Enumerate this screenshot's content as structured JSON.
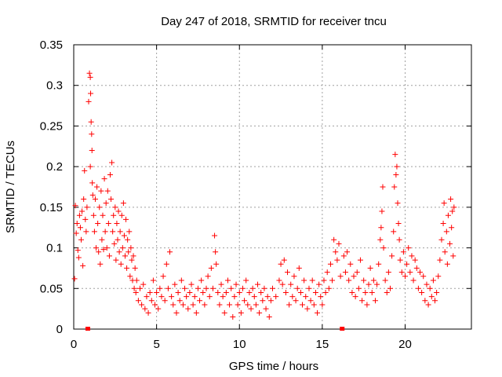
{
  "chart_data": {
    "type": "scatter",
    "title": "Day 247 of 2018, SRMTID for receiver tncu",
    "xlabel": "GPS time / hours",
    "ylabel": "SRMTID / TECUs",
    "xlim": [
      0,
      24
    ],
    "ylim": [
      0,
      0.35
    ],
    "xticks": [
      0,
      5,
      10,
      15,
      20
    ],
    "yticks": [
      0,
      0.05,
      0.1,
      0.15,
      0.2,
      0.25,
      0.3,
      0.35
    ],
    "xtick_labels": [
      "0",
      "5",
      "10",
      "15",
      "20"
    ],
    "ytick_labels": [
      "0",
      "0.05",
      "0.1",
      "0.15",
      "0.2",
      "0.25",
      "0.3",
      "0.35"
    ],
    "grid": true,
    "marker": "+",
    "series_color": "#ff0000",
    "gap_markers_x": [
      0.85,
      16.2
    ],
    "series": [
      {
        "name": "SRMTID",
        "points": [
          [
            0.05,
            0.062
          ],
          [
            0.1,
            0.152
          ],
          [
            0.15,
            0.118
          ],
          [
            0.2,
            0.13
          ],
          [
            0.25,
            0.097
          ],
          [
            0.3,
            0.088
          ],
          [
            0.35,
            0.14
          ],
          [
            0.4,
            0.125
          ],
          [
            0.45,
            0.11
          ],
          [
            0.5,
            0.145
          ],
          [
            0.55,
            0.078
          ],
          [
            0.6,
            0.16
          ],
          [
            0.65,
            0.195
          ],
          [
            0.7,
            0.135
          ],
          [
            0.75,
            0.12
          ],
          [
            0.8,
            0.15
          ],
          [
            0.9,
            0.28
          ],
          [
            0.95,
            0.315
          ],
          [
            1.0,
            0.31
          ],
          [
            1.02,
            0.29
          ],
          [
            1.05,
            0.255
          ],
          [
            1.08,
            0.24
          ],
          [
            1.1,
            0.22
          ],
          [
            1.0,
            0.2
          ],
          [
            1.12,
            0.18
          ],
          [
            1.15,
            0.165
          ],
          [
            1.2,
            0.14
          ],
          [
            1.25,
            0.12
          ],
          [
            1.3,
            0.16
          ],
          [
            1.35,
            0.1
          ],
          [
            1.4,
            0.175
          ],
          [
            1.45,
            0.13
          ],
          [
            1.5,
            0.095
          ],
          [
            1.55,
            0.15
          ],
          [
            1.6,
            0.08
          ],
          [
            1.65,
            0.17
          ],
          [
            1.7,
            0.11
          ],
          [
            1.75,
            0.14
          ],
          [
            1.8,
            0.098
          ],
          [
            1.85,
            0.185
          ],
          [
            1.9,
            0.12
          ],
          [
            1.95,
            0.155
          ],
          [
            2.0,
            0.1
          ],
          [
            2.05,
            0.17
          ],
          [
            2.1,
            0.13
          ],
          [
            2.15,
            0.09
          ],
          [
            2.2,
            0.19
          ],
          [
            2.25,
            0.16
          ],
          [
            2.3,
            0.205
          ],
          [
            2.35,
            0.12
          ],
          [
            2.4,
            0.14
          ],
          [
            2.45,
            0.105
          ],
          [
            2.5,
            0.15
          ],
          [
            2.55,
            0.085
          ],
          [
            2.6,
            0.13
          ],
          [
            2.65,
            0.11
          ],
          [
            2.7,
            0.145
          ],
          [
            2.75,
            0.095
          ],
          [
            2.8,
            0.12
          ],
          [
            2.85,
            0.08
          ],
          [
            2.9,
            0.14
          ],
          [
            2.95,
            0.1
          ],
          [
            3.0,
            0.155
          ],
          [
            3.05,
            0.115
          ],
          [
            3.1,
            0.09
          ],
          [
            3.15,
            0.135
          ],
          [
            3.2,
            0.075
          ],
          [
            3.25,
            0.11
          ],
          [
            3.3,
            0.095
          ],
          [
            3.35,
            0.12
          ],
          [
            3.4,
            0.065
          ],
          [
            3.45,
            0.1
          ],
          [
            3.5,
            0.085
          ],
          [
            3.55,
            0.06
          ],
          [
            3.6,
            0.09
          ],
          [
            3.65,
            0.05
          ],
          [
            3.7,
            0.075
          ],
          [
            3.75,
            0.045
          ],
          [
            3.8,
            0.06
          ],
          [
            3.9,
            0.035
          ],
          [
            4.0,
            0.05
          ],
          [
            4.1,
            0.03
          ],
          [
            4.2,
            0.055
          ],
          [
            4.3,
            0.025
          ],
          [
            4.4,
            0.04
          ],
          [
            4.5,
            0.02
          ],
          [
            4.6,
            0.045
          ],
          [
            4.7,
            0.035
          ],
          [
            4.8,
            0.06
          ],
          [
            4.9,
            0.03
          ],
          [
            5.0,
            0.045
          ],
          [
            5.1,
            0.025
          ],
          [
            5.2,
            0.05
          ],
          [
            5.3,
            0.04
          ],
          [
            5.4,
            0.065
          ],
          [
            5.5,
            0.035
          ],
          [
            5.6,
            0.08
          ],
          [
            5.7,
            0.05
          ],
          [
            5.8,
            0.095
          ],
          [
            5.9,
            0.04
          ],
          [
            6.0,
            0.03
          ],
          [
            6.1,
            0.055
          ],
          [
            6.2,
            0.02
          ],
          [
            6.3,
            0.045
          ],
          [
            6.4,
            0.035
          ],
          [
            6.5,
            0.06
          ],
          [
            6.6,
            0.03
          ],
          [
            6.7,
            0.05
          ],
          [
            6.8,
            0.04
          ],
          [
            6.9,
            0.025
          ],
          [
            7.0,
            0.045
          ],
          [
            7.1,
            0.055
          ],
          [
            7.2,
            0.03
          ],
          [
            7.3,
            0.04
          ],
          [
            7.4,
            0.02
          ],
          [
            7.5,
            0.05
          ],
          [
            7.6,
            0.035
          ],
          [
            7.7,
            0.06
          ],
          [
            7.8,
            0.045
          ],
          [
            7.9,
            0.03
          ],
          [
            8.0,
            0.05
          ],
          [
            8.1,
            0.065
          ],
          [
            8.2,
            0.04
          ],
          [
            8.3,
            0.075
          ],
          [
            8.4,
            0.05
          ],
          [
            8.5,
            0.115
          ],
          [
            8.55,
            0.095
          ],
          [
            8.6,
            0.08
          ],
          [
            8.7,
            0.045
          ],
          [
            8.8,
            0.03
          ],
          [
            8.9,
            0.055
          ],
          [
            9.0,
            0.04
          ],
          [
            9.1,
            0.02
          ],
          [
            9.2,
            0.045
          ],
          [
            9.3,
            0.06
          ],
          [
            9.4,
            0.03
          ],
          [
            9.5,
            0.05
          ],
          [
            9.6,
            0.015
          ],
          [
            9.7,
            0.04
          ],
          [
            9.8,
            0.055
          ],
          [
            9.9,
            0.03
          ],
          [
            10.0,
            0.045
          ],
          [
            10.1,
            0.02
          ],
          [
            10.2,
            0.05
          ],
          [
            10.3,
            0.035
          ],
          [
            10.4,
            0.06
          ],
          [
            10.5,
            0.03
          ],
          [
            10.6,
            0.045
          ],
          [
            10.7,
            0.025
          ],
          [
            10.8,
            0.05
          ],
          [
            10.9,
            0.04
          ],
          [
            11.0,
            0.03
          ],
          [
            11.1,
            0.055
          ],
          [
            11.2,
            0.02
          ],
          [
            11.3,
            0.045
          ],
          [
            11.4,
            0.035
          ],
          [
            11.5,
            0.05
          ],
          [
            11.6,
            0.025
          ],
          [
            11.7,
            0.04
          ],
          [
            11.8,
            0.015
          ],
          [
            11.9,
            0.035
          ],
          [
            12.0,
            0.05
          ],
          [
            12.2,
            0.04
          ],
          [
            12.4,
            0.06
          ],
          [
            12.5,
            0.08
          ],
          [
            12.6,
            0.055
          ],
          [
            12.7,
            0.085
          ],
          [
            12.8,
            0.045
          ],
          [
            12.9,
            0.07
          ],
          [
            13.0,
            0.03
          ],
          [
            13.1,
            0.055
          ],
          [
            13.2,
            0.04
          ],
          [
            13.3,
            0.065
          ],
          [
            13.4,
            0.035
          ],
          [
            13.5,
            0.05
          ],
          [
            13.6,
            0.075
          ],
          [
            13.7,
            0.045
          ],
          [
            13.8,
            0.03
          ],
          [
            13.9,
            0.06
          ],
          [
            14.0,
            0.04
          ],
          [
            14.1,
            0.025
          ],
          [
            14.2,
            0.05
          ],
          [
            14.3,
            0.035
          ],
          [
            14.4,
            0.06
          ],
          [
            14.5,
            0.03
          ],
          [
            14.6,
            0.045
          ],
          [
            14.7,
            0.02
          ],
          [
            14.8,
            0.055
          ],
          [
            14.9,
            0.04
          ],
          [
            15.0,
            0.03
          ],
          [
            15.1,
            0.06
          ],
          [
            15.2,
            0.045
          ],
          [
            15.3,
            0.07
          ],
          [
            15.4,
            0.05
          ],
          [
            15.5,
            0.08
          ],
          [
            15.6,
            0.06
          ],
          [
            15.7,
            0.11
          ],
          [
            15.8,
            0.095
          ],
          [
            15.9,
            0.085
          ],
          [
            16.0,
            0.105
          ],
          [
            16.1,
            0.065
          ],
          [
            16.3,
            0.09
          ],
          [
            16.4,
            0.07
          ],
          [
            16.5,
            0.095
          ],
          [
            16.6,
            0.06
          ],
          [
            16.7,
            0.08
          ],
          [
            16.8,
            0.045
          ],
          [
            16.9,
            0.065
          ],
          [
            17.0,
            0.04
          ],
          [
            17.1,
            0.07
          ],
          [
            17.2,
            0.05
          ],
          [
            17.3,
            0.085
          ],
          [
            17.4,
            0.035
          ],
          [
            17.5,
            0.06
          ],
          [
            17.6,
            0.045
          ],
          [
            17.7,
            0.03
          ],
          [
            17.8,
            0.055
          ],
          [
            17.9,
            0.075
          ],
          [
            18.0,
            0.045
          ],
          [
            18.1,
            0.06
          ],
          [
            18.2,
            0.035
          ],
          [
            18.3,
            0.055
          ],
          [
            18.4,
            0.08
          ],
          [
            18.5,
            0.11
          ],
          [
            18.55,
            0.125
          ],
          [
            18.6,
            0.145
          ],
          [
            18.65,
            0.175
          ],
          [
            18.7,
            0.1
          ],
          [
            18.8,
            0.06
          ],
          [
            18.9,
            0.045
          ],
          [
            19.0,
            0.07
          ],
          [
            19.1,
            0.05
          ],
          [
            19.2,
            0.09
          ],
          [
            19.3,
            0.12
          ],
          [
            19.35,
            0.175
          ],
          [
            19.4,
            0.215
          ],
          [
            19.45,
            0.19
          ],
          [
            19.5,
            0.2
          ],
          [
            19.55,
            0.155
          ],
          [
            19.6,
            0.13
          ],
          [
            19.65,
            0.11
          ],
          [
            19.7,
            0.085
          ],
          [
            19.8,
            0.07
          ],
          [
            19.9,
            0.095
          ],
          [
            20.0,
            0.065
          ],
          [
            20.1,
            0.08
          ],
          [
            20.2,
            0.1
          ],
          [
            20.3,
            0.07
          ],
          [
            20.4,
            0.09
          ],
          [
            20.5,
            0.06
          ],
          [
            20.6,
            0.085
          ],
          [
            20.7,
            0.075
          ],
          [
            20.8,
            0.05
          ],
          [
            20.9,
            0.07
          ],
          [
            21.0,
            0.045
          ],
          [
            21.1,
            0.065
          ],
          [
            21.2,
            0.035
          ],
          [
            21.3,
            0.055
          ],
          [
            21.4,
            0.03
          ],
          [
            21.5,
            0.05
          ],
          [
            21.6,
            0.04
          ],
          [
            21.7,
            0.06
          ],
          [
            21.8,
            0.035
          ],
          [
            21.9,
            0.045
          ],
          [
            22.0,
            0.065
          ],
          [
            22.1,
            0.085
          ],
          [
            22.2,
            0.11
          ],
          [
            22.3,
            0.13
          ],
          [
            22.35,
            0.155
          ],
          [
            22.4,
            0.095
          ],
          [
            22.5,
            0.12
          ],
          [
            22.55,
            0.08
          ],
          [
            22.6,
            0.14
          ],
          [
            22.7,
            0.105
          ],
          [
            22.75,
            0.16
          ],
          [
            22.8,
            0.125
          ],
          [
            22.85,
            0.145
          ],
          [
            22.9,
            0.09
          ],
          [
            22.95,
            0.15
          ]
        ]
      }
    ]
  }
}
